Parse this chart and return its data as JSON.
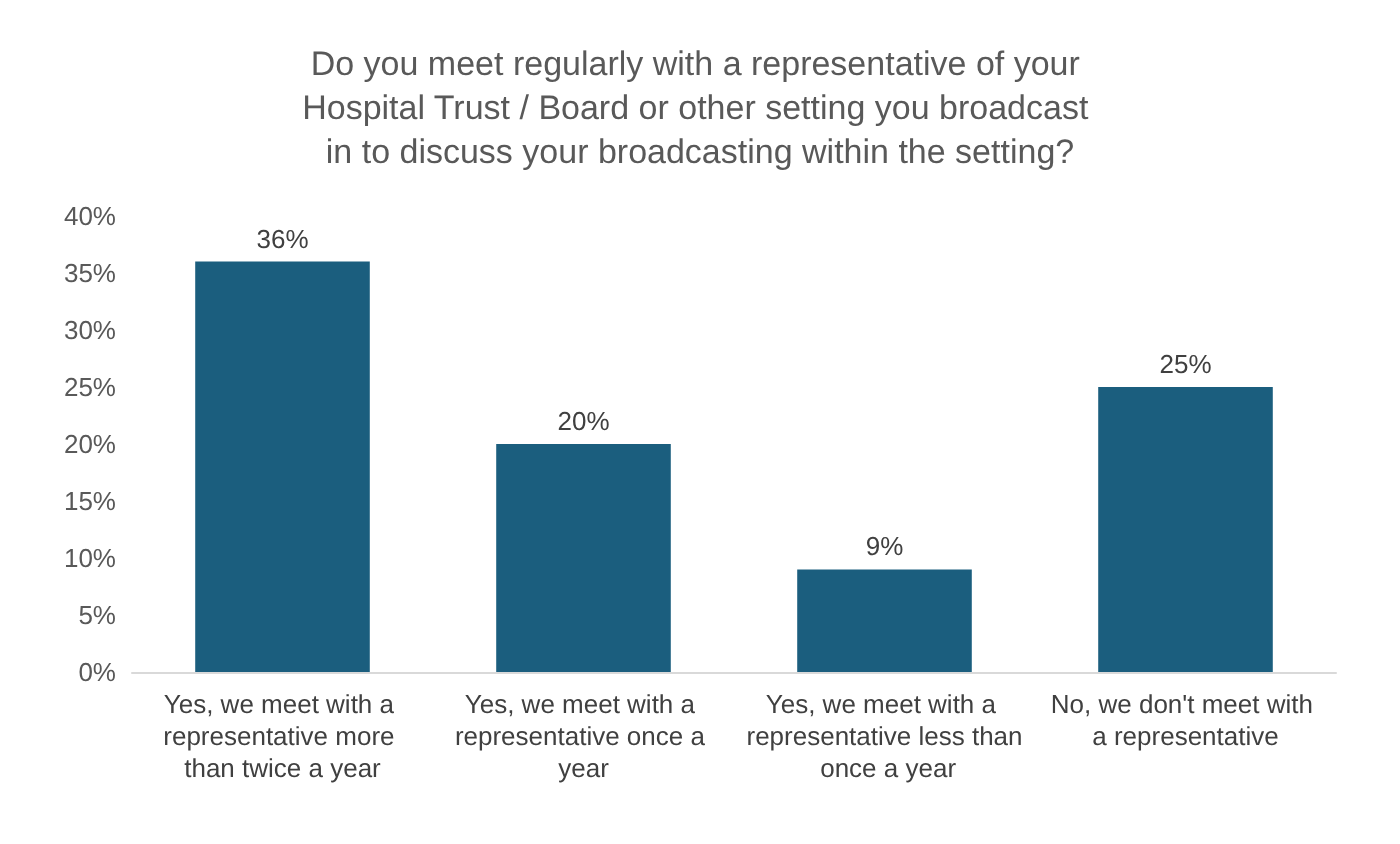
{
  "chart_data": {
    "type": "bar",
    "title": "Do you meet regularly with a representative of your Hospital Trust / Board or other setting you broadcast in to discuss your broadcasting within the setting?",
    "categories": [
      "Yes, we meet with a representative more than twice a year",
      "Yes, we meet with a representative once a year",
      "Yes, we meet with a representative less than once a year",
      "No, we don't meet with a representative"
    ],
    "values": [
      36,
      20,
      9,
      25
    ],
    "value_labels": [
      "36%",
      "20%",
      "9%",
      "25%"
    ],
    "color": "#1b5e7e",
    "ylim": [
      0,
      40
    ],
    "yticks": [
      {
        "value": 0,
        "label": "0%"
      },
      {
        "value": 5,
        "label": "5%"
      },
      {
        "value": 10,
        "label": "10%"
      },
      {
        "value": 15,
        "label": "15%"
      },
      {
        "value": 20,
        "label": "20%"
      },
      {
        "value": 25,
        "label": "25%"
      },
      {
        "value": 30,
        "label": "30%"
      },
      {
        "value": 35,
        "label": "35%"
      },
      {
        "value": 40,
        "label": "40%"
      }
    ],
    "grid": false
  }
}
